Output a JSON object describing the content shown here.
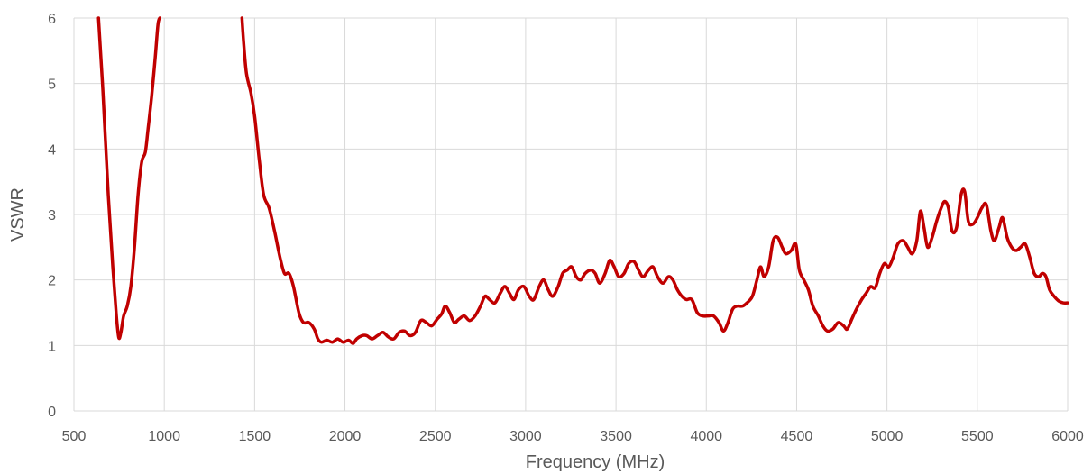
{
  "chart_data": {
    "type": "line",
    "title": "",
    "xlabel": "Frequency (MHz)",
    "ylabel": "VSWR",
    "xlim": [
      500,
      6000
    ],
    "ylim": [
      0,
      6
    ],
    "xticks": [
      500,
      1000,
      1500,
      2000,
      2500,
      3000,
      3500,
      4000,
      4500,
      5000,
      5500,
      6000
    ],
    "yticks": [
      0,
      1,
      2,
      3,
      4,
      5,
      6
    ],
    "grid": true,
    "legend": "none",
    "colors": {
      "series": "#c00000",
      "grid": "#d9d9d9",
      "text": "#595959"
    },
    "series": [
      {
        "segments": [
          [
            [
              636,
              6.0
            ],
            [
              660,
              4.9
            ],
            [
              690,
              3.3
            ],
            [
              715,
              2.2
            ],
            [
              735,
              1.45
            ],
            [
              748,
              1.12
            ],
            [
              760,
              1.2
            ],
            [
              775,
              1.45
            ],
            [
              795,
              1.6
            ],
            [
              815,
              1.9
            ],
            [
              835,
              2.5
            ],
            [
              855,
              3.3
            ],
            [
              875,
              3.8
            ],
            [
              895,
              3.95
            ],
            [
              910,
              4.3
            ],
            [
              930,
              4.8
            ],
            [
              950,
              5.4
            ],
            [
              965,
              5.9
            ],
            [
              975,
              6.0
            ]
          ],
          [
            [
              1430,
              6.0
            ],
            [
              1440,
              5.6
            ],
            [
              1455,
              5.15
            ],
            [
              1480,
              4.85
            ],
            [
              1500,
              4.5
            ],
            [
              1525,
              3.85
            ],
            [
              1550,
              3.3
            ],
            [
              1580,
              3.1
            ],
            [
              1610,
              2.75
            ],
            [
              1640,
              2.35
            ],
            [
              1665,
              2.1
            ],
            [
              1690,
              2.1
            ],
            [
              1715,
              1.9
            ],
            [
              1745,
              1.5
            ],
            [
              1770,
              1.35
            ],
            [
              1800,
              1.35
            ],
            [
              1830,
              1.25
            ],
            [
              1850,
              1.1
            ],
            [
              1870,
              1.05
            ],
            [
              1900,
              1.08
            ],
            [
              1930,
              1.05
            ],
            [
              1960,
              1.1
            ],
            [
              1990,
              1.05
            ],
            [
              2020,
              1.08
            ],
            [
              2045,
              1.03
            ],
            [
              2065,
              1.1
            ],
            [
              2095,
              1.15
            ],
            [
              2120,
              1.15
            ],
            [
              2150,
              1.1
            ],
            [
              2180,
              1.15
            ],
            [
              2210,
              1.2
            ],
            [
              2240,
              1.13
            ],
            [
              2270,
              1.1
            ],
            [
              2300,
              1.2
            ],
            [
              2330,
              1.22
            ],
            [
              2360,
              1.15
            ],
            [
              2390,
              1.2
            ],
            [
              2420,
              1.38
            ],
            [
              2450,
              1.35
            ],
            [
              2480,
              1.3
            ],
            [
              2510,
              1.4
            ],
            [
              2535,
              1.48
            ],
            [
              2555,
              1.6
            ],
            [
              2580,
              1.5
            ],
            [
              2605,
              1.35
            ],
            [
              2630,
              1.4
            ],
            [
              2660,
              1.45
            ],
            [
              2690,
              1.38
            ],
            [
              2720,
              1.45
            ],
            [
              2750,
              1.6
            ],
            [
              2775,
              1.75
            ],
            [
              2800,
              1.7
            ],
            [
              2830,
              1.65
            ],
            [
              2860,
              1.8
            ],
            [
              2885,
              1.9
            ],
            [
              2910,
              1.8
            ],
            [
              2935,
              1.7
            ],
            [
              2960,
              1.85
            ],
            [
              2990,
              1.9
            ],
            [
              3020,
              1.75
            ],
            [
              3045,
              1.7
            ],
            [
              3075,
              1.9
            ],
            [
              3100,
              2.0
            ],
            [
              3125,
              1.85
            ],
            [
              3150,
              1.75
            ],
            [
              3180,
              1.9
            ],
            [
              3205,
              2.1
            ],
            [
              3230,
              2.15
            ],
            [
              3255,
              2.2
            ],
            [
              3280,
              2.05
            ],
            [
              3305,
              2.0
            ],
            [
              3330,
              2.1
            ],
            [
              3360,
              2.15
            ],
            [
              3385,
              2.1
            ],
            [
              3410,
              1.95
            ],
            [
              3440,
              2.1
            ],
            [
              3465,
              2.3
            ],
            [
              3490,
              2.2
            ],
            [
              3515,
              2.05
            ],
            [
              3545,
              2.1
            ],
            [
              3570,
              2.25
            ],
            [
              3600,
              2.28
            ],
            [
              3625,
              2.15
            ],
            [
              3650,
              2.05
            ],
            [
              3680,
              2.15
            ],
            [
              3705,
              2.2
            ],
            [
              3730,
              2.05
            ],
            [
              3760,
              1.95
            ],
            [
              3790,
              2.05
            ],
            [
              3815,
              2.0
            ],
            [
              3840,
              1.85
            ],
            [
              3865,
              1.75
            ],
            [
              3890,
              1.7
            ],
            [
              3920,
              1.7
            ],
            [
              3950,
              1.5
            ],
            [
              3980,
              1.45
            ],
            [
              4010,
              1.45
            ],
            [
              4040,
              1.45
            ],
            [
              4070,
              1.35
            ],
            [
              4095,
              1.22
            ],
            [
              4120,
              1.35
            ],
            [
              4145,
              1.55
            ],
            [
              4170,
              1.6
            ],
            [
              4200,
              1.6
            ],
            [
              4225,
              1.65
            ],
            [
              4255,
              1.75
            ],
            [
              4280,
              2.0
            ],
            [
              4300,
              2.2
            ],
            [
              4320,
              2.05
            ],
            [
              4345,
              2.2
            ],
            [
              4370,
              2.6
            ],
            [
              4395,
              2.65
            ],
            [
              4420,
              2.5
            ],
            [
              4440,
              2.4
            ],
            [
              4470,
              2.45
            ],
            [
              4495,
              2.55
            ],
            [
              4515,
              2.15
            ],
            [
              4540,
              2.0
            ],
            [
              4565,
              1.85
            ],
            [
              4590,
              1.6
            ],
            [
              4620,
              1.45
            ],
            [
              4645,
              1.3
            ],
            [
              4670,
              1.22
            ],
            [
              4700,
              1.25
            ],
            [
              4730,
              1.35
            ],
            [
              4760,
              1.3
            ],
            [
              4780,
              1.25
            ],
            [
              4805,
              1.4
            ],
            [
              4830,
              1.55
            ],
            [
              4860,
              1.7
            ],
            [
              4885,
              1.8
            ],
            [
              4910,
              1.9
            ],
            [
              4935,
              1.88
            ],
            [
              4960,
              2.1
            ],
            [
              4985,
              2.25
            ],
            [
              5010,
              2.2
            ],
            [
              5035,
              2.35
            ],
            [
              5060,
              2.55
            ],
            [
              5090,
              2.6
            ],
            [
              5115,
              2.5
            ],
            [
              5140,
              2.4
            ],
            [
              5165,
              2.6
            ],
            [
              5185,
              3.05
            ],
            [
              5205,
              2.8
            ],
            [
              5225,
              2.5
            ],
            [
              5250,
              2.65
            ],
            [
              5275,
              2.9
            ],
            [
              5300,
              3.1
            ],
            [
              5320,
              3.2
            ],
            [
              5340,
              3.1
            ],
            [
              5360,
              2.75
            ],
            [
              5385,
              2.8
            ],
            [
              5410,
              3.3
            ],
            [
              5430,
              3.35
            ],
            [
              5450,
              2.9
            ],
            [
              5475,
              2.85
            ],
            [
              5500,
              2.95
            ],
            [
              5525,
              3.1
            ],
            [
              5550,
              3.15
            ],
            [
              5575,
              2.75
            ],
            [
              5595,
              2.6
            ],
            [
              5620,
              2.8
            ],
            [
              5640,
              2.95
            ],
            [
              5665,
              2.65
            ],
            [
              5690,
              2.5
            ],
            [
              5715,
              2.45
            ],
            [
              5740,
              2.5
            ],
            [
              5765,
              2.55
            ],
            [
              5790,
              2.35
            ],
            [
              5815,
              2.1
            ],
            [
              5840,
              2.05
            ],
            [
              5860,
              2.1
            ],
            [
              5880,
              2.05
            ],
            [
              5900,
              1.85
            ],
            [
              5925,
              1.75
            ],
            [
              5950,
              1.68
            ],
            [
              5975,
              1.65
            ],
            [
              6000,
              1.65
            ]
          ]
        ]
      }
    ]
  }
}
